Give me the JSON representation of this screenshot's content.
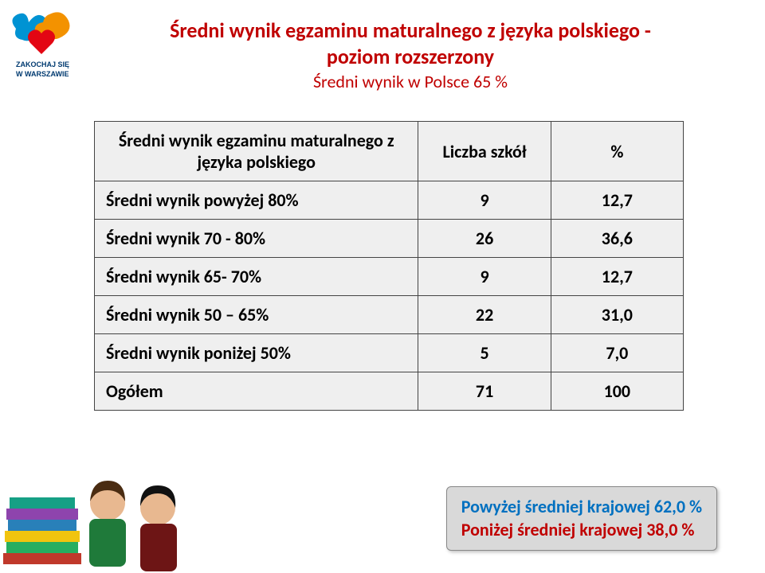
{
  "title": {
    "line1": "Średni wynik egzaminu maturalnego z  języka polskiego  -",
    "line2": "poziom rozszerzony",
    "subtitle": "Średni wynik w Polsce 65 %",
    "color": "#c00000",
    "subtitle_color": "#c00000",
    "fontsize": 26,
    "subtitle_fontsize": 22
  },
  "table": {
    "header_label": "Średni wynik egzaminu maturalnego z języka polskiego",
    "header_col1": "Liczba szkół",
    "header_col2": "%",
    "header_bg": "#efefef",
    "cell_bg": "#efefef",
    "border_color": "#444444",
    "fontsize": 22,
    "rows": [
      {
        "label": "Średni wynik powyżej 80%",
        "c1": "9",
        "c2": "12,7"
      },
      {
        "label": "Średni wynik  70 - 80%",
        "c1": "26",
        "c2": "36,6"
      },
      {
        "label": "Średni wynik  65- 70%",
        "c1": "9",
        "c2": "12,7",
        "tall": true
      },
      {
        "label": "Średni wynik  50 – 65%",
        "c1": "22",
        "c2": "31,0"
      },
      {
        "label": "Średni wynik  poniżej 50%",
        "c1": "5",
        "c2": "7,0"
      },
      {
        "label": "Ogółem",
        "c1": "71",
        "c2": "100"
      }
    ]
  },
  "callout": {
    "line1": "Powyżej średniej krajowej 62,0 %",
    "line2": "Poniżej średniej krajowej    38,0 %",
    "line1_color": "#0070c0",
    "line2_color": "#c00000",
    "bg": "#d9d9d9",
    "fontsize": 22
  },
  "logo": {
    "heart_color": "#e30613",
    "blue_color": "#0093d3",
    "orange_color": "#f39200",
    "text_top": "ZAKOCHAJ SIĘ",
    "text_bottom": "W WARSZAWIE"
  },
  "bottom_image": {
    "book_colors": [
      "#c0392b",
      "#27ae60",
      "#f1c40f",
      "#2980b9",
      "#8e44ad"
    ],
    "person_skin": "#e8b890",
    "person_hair1": "#4a2c12",
    "person_shirt1": "#1f7a3a",
    "person_hair2": "#111111",
    "person_shirt2": "#6d1515"
  }
}
